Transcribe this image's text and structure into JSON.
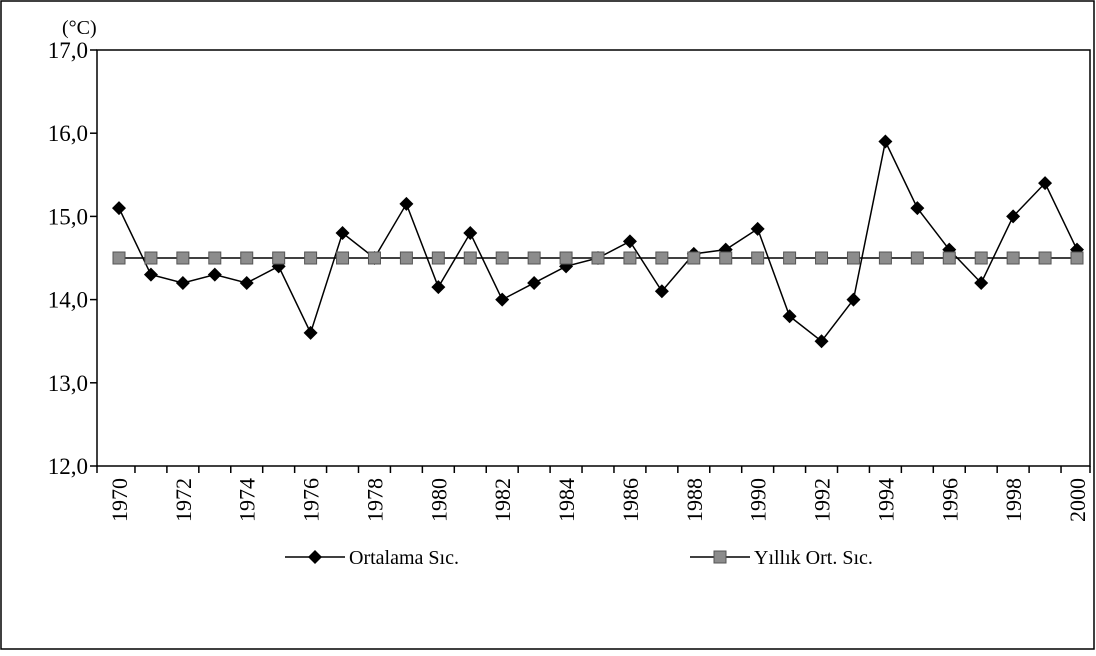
{
  "chart_data": {
    "type": "line",
    "y_label": "(°C)",
    "categories": [
      "1970",
      null,
      "1972",
      null,
      "1974",
      null,
      "1976",
      null,
      "1978",
      null,
      "1980",
      null,
      "1982",
      null,
      "1984",
      null,
      "1986",
      null,
      "1988",
      null,
      "1990",
      null,
      "1992",
      null,
      "1994",
      null,
      "1996",
      null,
      "1998",
      null,
      "2000"
    ],
    "series": [
      {
        "name": "Ortalama Sıc.",
        "color": "#000000",
        "marker": "diamond",
        "values": [
          15.1,
          14.3,
          14.2,
          14.3,
          14.2,
          14.4,
          13.6,
          14.8,
          14.5,
          15.15,
          14.15,
          14.8,
          14.0,
          14.2,
          14.4,
          14.5,
          14.7,
          14.1,
          14.55,
          14.6,
          14.85,
          13.8,
          13.5,
          14.0,
          15.9,
          15.1,
          14.6,
          14.2,
          15.0,
          15.4,
          14.6
        ]
      },
      {
        "name": "Yıllık Ort. Sıc.",
        "color": "#8c8c8c",
        "marker": "square",
        "values": [
          14.5,
          14.5,
          14.5,
          14.5,
          14.5,
          14.5,
          14.5,
          14.5,
          14.5,
          14.5,
          14.5,
          14.5,
          14.5,
          14.5,
          14.5,
          14.5,
          14.5,
          14.5,
          14.5,
          14.5,
          14.5,
          14.5,
          14.5,
          14.5,
          14.5,
          14.5,
          14.5,
          14.5,
          14.5,
          14.5,
          14.5
        ]
      }
    ],
    "ylim": [
      12,
      17
    ],
    "yticks": [
      {
        "value": 12,
        "label": "12,0"
      },
      {
        "value": 13,
        "label": "13,0"
      },
      {
        "value": 14,
        "label": "14,0"
      },
      {
        "value": 15,
        "label": "15,0"
      },
      {
        "value": 16,
        "label": "16,0"
      },
      {
        "value": 17,
        "label": "17,0"
      }
    ],
    "grid": false,
    "legend": "bottom"
  }
}
